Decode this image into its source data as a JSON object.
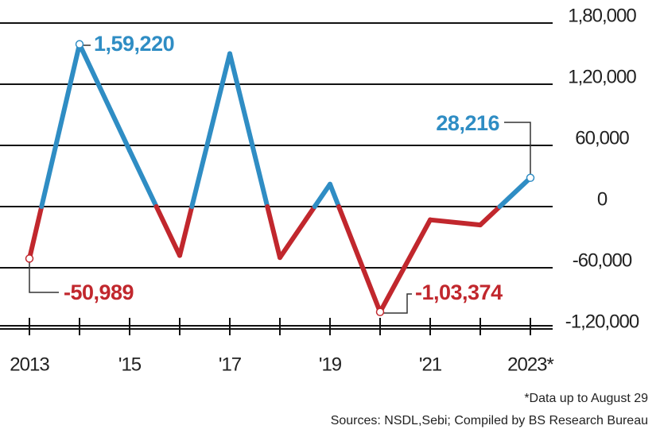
{
  "chart_data": {
    "type": "line",
    "categories": [
      "2013",
      null,
      "'15",
      null,
      "'17",
      null,
      "'19",
      null,
      "'21",
      null,
      "2023*"
    ],
    "values": [
      -50989,
      159220,
      55000,
      -48000,
      150000,
      -50000,
      22000,
      -103374,
      -13000,
      -18000,
      28216
    ],
    "value_labels": [
      "-50,989",
      "1,59,220",
      null,
      null,
      null,
      null,
      null,
      "-1,03,374",
      null,
      null,
      "28,216"
    ],
    "positive_color": "#2f8dc4",
    "negative_color": "#c1272d",
    "ylim": [
      -120000,
      180000
    ],
    "yticks": [
      {
        "value": -120000,
        "label": "-1,20,000"
      },
      {
        "value": -60000,
        "label": "-60,000"
      },
      0,
      {
        "value": 60000,
        "label": "60,000"
      },
      {
        "value": 120000,
        "label": "1,20,000"
      },
      {
        "value": 180000,
        "label": "1,80,000"
      }
    ],
    "grid": true,
    "footnotes": [
      "*Data up to August 29",
      "Sources: NSDL,Sebi; Compiled by BS Research Bureau"
    ]
  }
}
